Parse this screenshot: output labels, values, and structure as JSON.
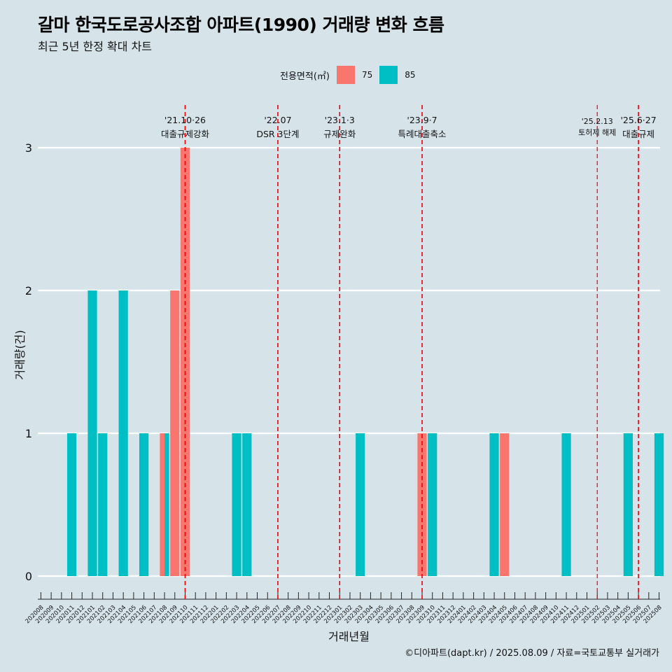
{
  "title": "갈마 한국도로공사조합 아파트(1990) 거래량 변화 흐름",
  "subtitle": "최근 5년 한정 확대 차트",
  "legend": {
    "title": "전용면적(㎡)",
    "items": [
      {
        "label": "75",
        "color": "#F8766D"
      },
      {
        "label": "85",
        "color": "#00BFC4"
      }
    ]
  },
  "caption": "©디아파트(dapt.kr) / 2025.08.09 / 자료=국토교통부 실거래가",
  "chart_data": {
    "type": "bar",
    "xlabel": "거래년월",
    "ylabel": "거래량(건)",
    "ylim": [
      0,
      3
    ],
    "yticks": [
      0,
      1,
      2,
      3
    ],
    "grid": true,
    "legend_position": "top",
    "categories": [
      "202008",
      "202009",
      "202010",
      "202011",
      "202012",
      "202101",
      "202102",
      "202103",
      "202104",
      "202105",
      "202106",
      "202107",
      "202108",
      "202109",
      "202110",
      "202111",
      "202112",
      "202201",
      "202202",
      "202203",
      "202204",
      "202205",
      "202206",
      "202207",
      "202208",
      "202209",
      "202210",
      "202211",
      "202212",
      "202301",
      "202302",
      "202303",
      "202304",
      "202305",
      "202306",
      "202307",
      "202308",
      "202309",
      "202310",
      "202311",
      "202312",
      "202401",
      "202402",
      "202403",
      "202404",
      "202405",
      "202406",
      "202407",
      "202408",
      "202409",
      "202410",
      "202411",
      "202412",
      "202501",
      "202502",
      "202503",
      "202504",
      "202505",
      "202506",
      "202507",
      "202508"
    ],
    "series": [
      {
        "name": "75",
        "color": "#F8766D",
        "values": [
          0,
          0,
          0,
          0,
          0,
          0,
          0,
          0,
          0,
          0,
          0,
          0,
          1,
          2,
          3,
          0,
          0,
          0,
          0,
          0,
          0,
          0,
          0,
          0,
          0,
          0,
          0,
          0,
          0,
          0,
          0,
          0,
          0,
          0,
          0,
          0,
          0,
          1,
          0,
          0,
          0,
          0,
          0,
          0,
          0,
          1,
          0,
          0,
          0,
          0,
          0,
          0,
          0,
          0,
          0,
          0,
          0,
          0,
          0,
          0,
          0
        ]
      },
      {
        "name": "85",
        "color": "#00BFC4",
        "values": [
          0,
          0,
          0,
          1,
          0,
          2,
          1,
          0,
          2,
          0,
          1,
          0,
          1,
          0,
          0,
          0,
          0,
          0,
          0,
          1,
          1,
          0,
          0,
          0,
          0,
          0,
          0,
          0,
          0,
          0,
          0,
          1,
          0,
          0,
          0,
          0,
          0,
          0,
          1,
          0,
          0,
          0,
          0,
          0,
          1,
          0,
          0,
          0,
          0,
          0,
          0,
          1,
          0,
          0,
          0,
          0,
          0,
          1,
          0,
          0,
          1
        ]
      }
    ],
    "annotations": [
      {
        "at": "202110",
        "date": "'21.10·26",
        "text": "대출규제강화",
        "small": false
      },
      {
        "at": "202207",
        "date": "'22.07",
        "text": "DSR 3단계",
        "small": false
      },
      {
        "at": "202301",
        "date": "'23.1·3",
        "text": "규제완화",
        "small": false
      },
      {
        "at": "202309",
        "date": "'23.9·7",
        "text": "특례대출축소",
        "small": false
      },
      {
        "at": "202502",
        "date": "'25.2.13",
        "text": "토허제 해제",
        "small": true
      },
      {
        "at": "202506",
        "date": "'25.6·27",
        "text": "대출규제",
        "small": false
      }
    ]
  }
}
